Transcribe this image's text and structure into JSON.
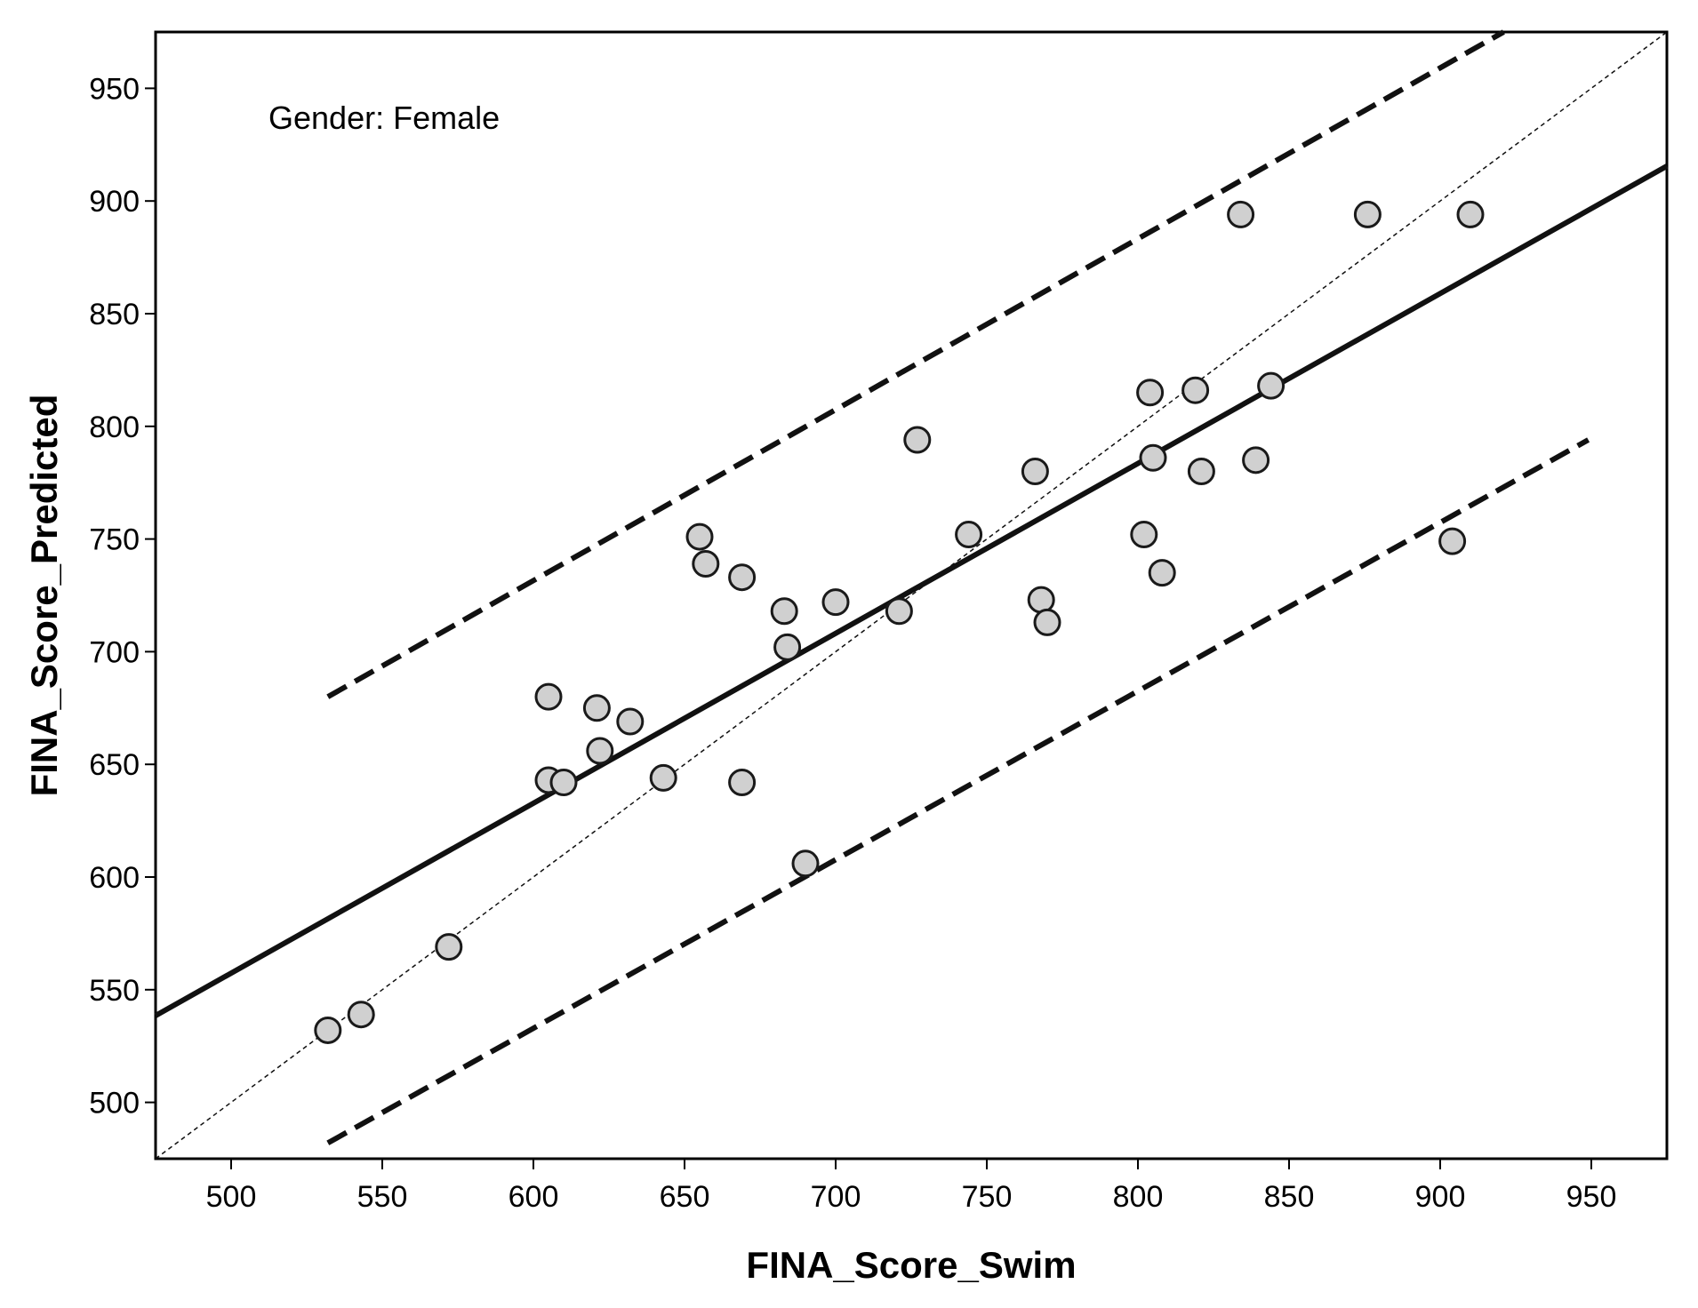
{
  "chart_data": {
    "type": "scatter",
    "title": "",
    "xlabel": "FINA_Score_Swim",
    "ylabel": "FINA_Score_Predicted",
    "annotation": "Gender: Female",
    "xlim": [
      475,
      975
    ],
    "ylim": [
      475,
      975
    ],
    "x_ticks": [
      500,
      550,
      600,
      650,
      700,
      750,
      800,
      850,
      900,
      950
    ],
    "y_ticks": [
      500,
      550,
      600,
      650,
      700,
      750,
      800,
      850,
      900,
      950
    ],
    "grid": false,
    "points": [
      {
        "x": 532,
        "y": 532
      },
      {
        "x": 543,
        "y": 539
      },
      {
        "x": 572,
        "y": 569
      },
      {
        "x": 605,
        "y": 680
      },
      {
        "x": 605,
        "y": 643
      },
      {
        "x": 610,
        "y": 642
      },
      {
        "x": 621,
        "y": 675
      },
      {
        "x": 622,
        "y": 656
      },
      {
        "x": 632,
        "y": 669
      },
      {
        "x": 643,
        "y": 644
      },
      {
        "x": 655,
        "y": 751
      },
      {
        "x": 657,
        "y": 739
      },
      {
        "x": 669,
        "y": 733
      },
      {
        "x": 669,
        "y": 642
      },
      {
        "x": 683,
        "y": 718
      },
      {
        "x": 684,
        "y": 702
      },
      {
        "x": 690,
        "y": 606
      },
      {
        "x": 700,
        "y": 722
      },
      {
        "x": 721,
        "y": 718
      },
      {
        "x": 727,
        "y": 794
      },
      {
        "x": 744,
        "y": 752
      },
      {
        "x": 766,
        "y": 780
      },
      {
        "x": 768,
        "y": 723
      },
      {
        "x": 770,
        "y": 713
      },
      {
        "x": 802,
        "y": 752
      },
      {
        "x": 804,
        "y": 815
      },
      {
        "x": 805,
        "y": 786
      },
      {
        "x": 808,
        "y": 735
      },
      {
        "x": 819,
        "y": 816
      },
      {
        "x": 821,
        "y": 780
      },
      {
        "x": 834,
        "y": 894
      },
      {
        "x": 839,
        "y": 785
      },
      {
        "x": 844,
        "y": 818
      },
      {
        "x": 876,
        "y": 894
      },
      {
        "x": 904,
        "y": 749
      },
      {
        "x": 910,
        "y": 894
      }
    ],
    "fit_line": {
      "x": [
        475,
        975
      ],
      "y": [
        538.5,
        915.5
      ]
    },
    "upper_bound": {
      "x": [
        532,
        921
      ],
      "y": [
        680,
        975
      ]
    },
    "lower_bound": {
      "x": [
        532,
        949
      ],
      "y": [
        482,
        794
      ]
    },
    "identity_line": {
      "x": [
        475,
        975
      ],
      "y": [
        475,
        975
      ]
    },
    "colors": {
      "marker_fill": "#d0d0d0",
      "marker_stroke": "#1a1a1a",
      "line": "#111111"
    }
  }
}
